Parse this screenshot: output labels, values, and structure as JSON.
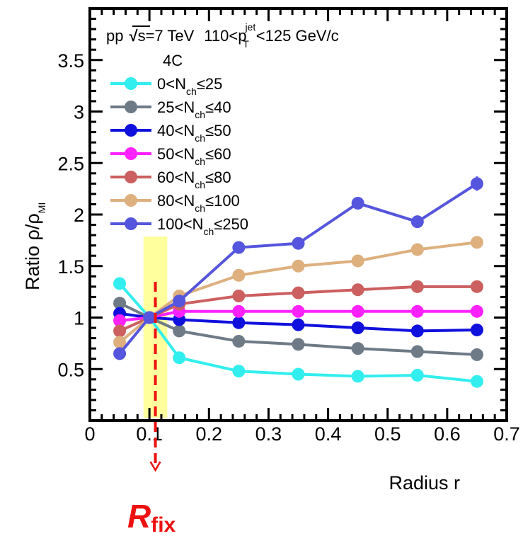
{
  "chart_data": {
    "type": "line",
    "xlabel": "Radius r",
    "ylabel": {
      "main": "Ratio ρ/ρ",
      "sub": "MI"
    },
    "xlim": [
      0,
      0.7
    ],
    "ylim": [
      0,
      4
    ],
    "xticks": [
      0,
      0.1,
      0.2,
      0.3,
      0.4,
      0.5,
      0.6,
      0.7
    ],
    "xtick_labels": [
      "0",
      "0.1",
      "0.2",
      "0.3",
      "0.4",
      "0.5",
      "0.6",
      "0.7"
    ],
    "yticks": [
      0.5,
      1,
      1.5,
      2,
      2.5,
      3,
      3.5
    ],
    "ytick_labels": [
      "0.5",
      "1",
      "1.5",
      "2",
      "2.5",
      "3",
      "3.5"
    ],
    "header": {
      "pp": "pp",
      "energy": "s=7 TeV",
      "range_pre": "110<p",
      "range_sup": "jet",
      "range_sub": "T",
      "range_post": "<125 GeV/c",
      "model": "4C"
    },
    "x": [
      0.05,
      0.1,
      0.15,
      0.25,
      0.35,
      0.45,
      0.55,
      0.65
    ],
    "series": [
      {
        "pre": "0<N",
        "sub": "ch",
        "post": "≤25",
        "color": "#33eeee",
        "values": [
          1.33,
          1.0,
          0.61,
          0.48,
          0.45,
          0.43,
          0.44,
          0.38
        ]
      },
      {
        "pre": "25<N",
        "sub": "ch",
        "post": "≤40",
        "color": "#6e7b87",
        "values": [
          1.14,
          1.0,
          0.87,
          0.77,
          0.74,
          0.7,
          0.67,
          0.64
        ]
      },
      {
        "pre": "40<N",
        "sub": "ch",
        "post": "≤50",
        "color": "#1111dd",
        "values": [
          1.04,
          1.0,
          0.98,
          0.95,
          0.93,
          0.9,
          0.87,
          0.88
        ]
      },
      {
        "pre": "50<N",
        "sub": "ch",
        "post": "≤60",
        "color": "#ff22ff",
        "values": [
          0.97,
          1.0,
          1.06,
          1.06,
          1.06,
          1.06,
          1.06,
          1.06
        ]
      },
      {
        "pre": "60<N",
        "sub": "ch",
        "post": "≤80",
        "color": "#cc5f5f",
        "values": [
          0.87,
          1.0,
          1.13,
          1.21,
          1.24,
          1.27,
          1.3,
          1.3
        ]
      },
      {
        "pre": "80<N",
        "sub": "ch",
        "post": "≤100",
        "color": "#ddb07e",
        "values": [
          0.76,
          1.0,
          1.21,
          1.41,
          1.5,
          1.55,
          1.66,
          1.73
        ]
      },
      {
        "pre": "100<N",
        "sub": "ch",
        "post": "≤250",
        "color": "#5555dd",
        "values": [
          0.65,
          1.0,
          1.16,
          1.68,
          1.72,
          2.11,
          1.93,
          2.3
        ],
        "errors": [
          0,
          0,
          0,
          0,
          0,
          0.06,
          0.06,
          0.07
        ]
      }
    ],
    "highlight_band": {
      "x_range": [
        0.09,
        0.13
      ],
      "color": "#ffff99"
    },
    "annotation": {
      "main": "R",
      "sub": "fix",
      "color": "#ee1111",
      "x": 0.11
    },
    "legend_position": "top-left",
    "grid": false
  }
}
